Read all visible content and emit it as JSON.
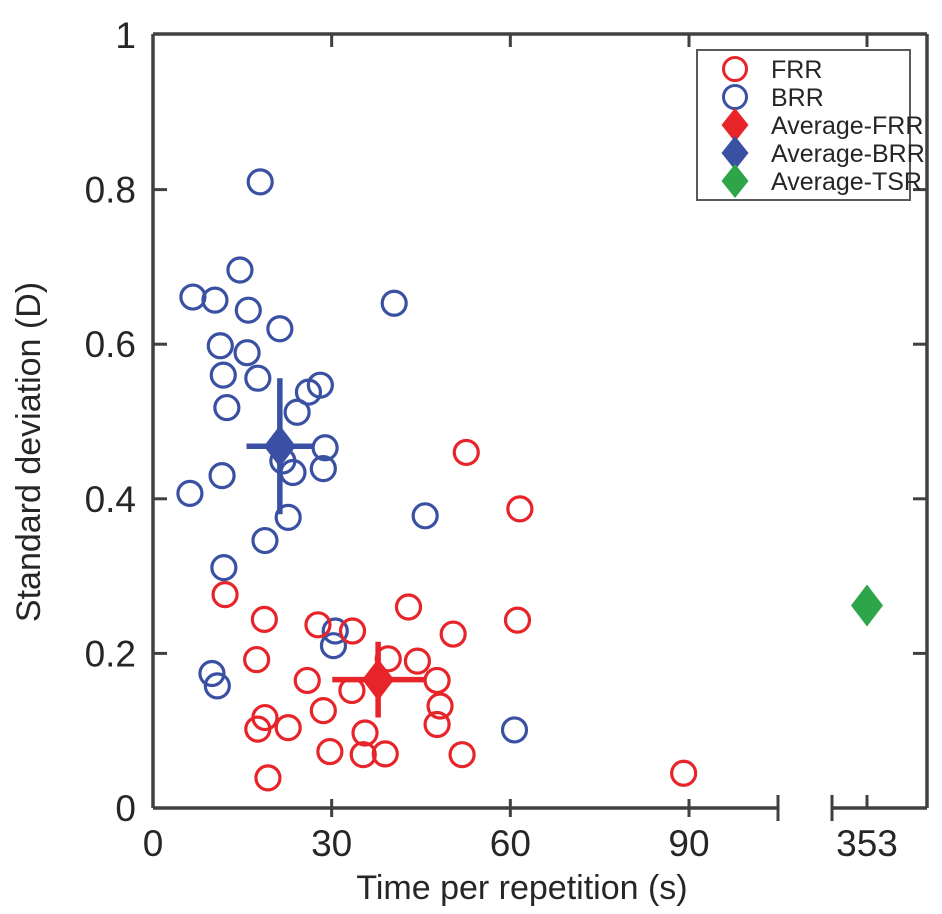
{
  "figure": {
    "background": "#ffffff"
  },
  "chart_data": {
    "type": "scatter",
    "title": "",
    "xlabel": "Time per repetition (s)",
    "ylabel": "Standard deviation (D)",
    "x_axis": {
      "range_main": [
        0,
        105
      ],
      "axis_break": true,
      "break_label": "353",
      "ticks": [
        {
          "value": 0,
          "label": "0"
        },
        {
          "value": 30,
          "label": "30"
        },
        {
          "value": 60,
          "label": "60"
        },
        {
          "value": 90,
          "label": "90"
        },
        {
          "value": 353,
          "label": "353",
          "segment": "break"
        }
      ]
    },
    "y_axis": {
      "range": [
        0,
        1
      ],
      "ticks": [
        {
          "value": 0,
          "label": "0"
        },
        {
          "value": 0.2,
          "label": "0.2"
        },
        {
          "value": 0.4,
          "label": "0.4"
        },
        {
          "value": 0.6,
          "label": "0.6"
        },
        {
          "value": 0.8,
          "label": "0.8"
        },
        {
          "value": 1,
          "label": "1"
        }
      ]
    },
    "grid": false,
    "colors": {
      "frr": "#E8242B",
      "brr": "#3A51A3",
      "tsr": "#2FA54A",
      "axis": "#404041",
      "text": "#262627",
      "legend_border": "#58595B"
    },
    "series": [
      {
        "name": "BRR",
        "marker": "open-circle",
        "color_key": "brr",
        "points": [
          [
            18.0,
            0.81
          ],
          [
            14.6,
            0.696
          ],
          [
            6.7,
            0.661
          ],
          [
            10.4,
            0.657
          ],
          [
            16.0,
            0.644
          ],
          [
            21.3,
            0.62
          ],
          [
            40.5,
            0.653
          ],
          [
            11.3,
            0.598
          ],
          [
            15.8,
            0.589
          ],
          [
            11.8,
            0.56
          ],
          [
            17.6,
            0.556
          ],
          [
            12.4,
            0.518
          ],
          [
            28.1,
            0.547
          ],
          [
            26.1,
            0.538
          ],
          [
            24.2,
            0.512
          ],
          [
            28.9,
            0.466
          ],
          [
            28.6,
            0.439
          ],
          [
            23.5,
            0.434
          ],
          [
            21.8,
            0.449
          ],
          [
            11.6,
            0.43
          ],
          [
            6.2,
            0.407
          ],
          [
            22.7,
            0.376
          ],
          [
            18.8,
            0.346
          ],
          [
            45.7,
            0.378
          ],
          [
            11.9,
            0.311
          ],
          [
            30.6,
            0.229
          ],
          [
            30.3,
            0.21
          ],
          [
            9.9,
            0.174
          ],
          [
            10.8,
            0.158
          ],
          [
            60.7,
            0.101
          ]
        ]
      },
      {
        "name": "FRR",
        "marker": "open-circle",
        "color_key": "frr",
        "points": [
          [
            52.6,
            0.46
          ],
          [
            61.6,
            0.387
          ],
          [
            12.1,
            0.276
          ],
          [
            18.7,
            0.244
          ],
          [
            27.7,
            0.237
          ],
          [
            33.5,
            0.229
          ],
          [
            42.9,
            0.26
          ],
          [
            50.4,
            0.225
          ],
          [
            61.2,
            0.243
          ],
          [
            17.4,
            0.192
          ],
          [
            25.9,
            0.165
          ],
          [
            39.5,
            0.193
          ],
          [
            44.4,
            0.19
          ],
          [
            47.7,
            0.165
          ],
          [
            33.4,
            0.152
          ],
          [
            28.6,
            0.126
          ],
          [
            18.8,
            0.117
          ],
          [
            17.6,
            0.102
          ],
          [
            22.7,
            0.104
          ],
          [
            35.6,
            0.097
          ],
          [
            29.7,
            0.073
          ],
          [
            35.3,
            0.069
          ],
          [
            39.0,
            0.07
          ],
          [
            47.7,
            0.108
          ],
          [
            48.2,
            0.132
          ],
          [
            51.9,
            0.069
          ],
          [
            19.3,
            0.039
          ],
          [
            89.1,
            0.045
          ]
        ]
      },
      {
        "name": "Average-BRR",
        "marker": "diamond",
        "color_key": "brr",
        "points": [
          [
            21.3,
            0.468
          ]
        ],
        "xerr": 5.6,
        "yerr": 0.088
      },
      {
        "name": "Average-FRR",
        "marker": "diamond",
        "color_key": "frr",
        "points": [
          [
            37.8,
            0.166
          ]
        ],
        "xerr": 7.7,
        "yerr": 0.049
      },
      {
        "name": "Average-TSR",
        "marker": "diamond",
        "color_key": "tsr",
        "points": [
          [
            353,
            0.262
          ]
        ],
        "on_break_segment": true
      }
    ],
    "legend": {
      "position": "top-right",
      "entries": [
        {
          "label": "FRR",
          "marker": "open-circle",
          "color_key": "frr"
        },
        {
          "label": "BRR",
          "marker": "open-circle",
          "color_key": "brr"
        },
        {
          "label": "Average-FRR",
          "marker": "diamond",
          "color_key": "frr"
        },
        {
          "label": "Average-BRR",
          "marker": "diamond",
          "color_key": "brr"
        },
        {
          "label": "Average-TSR",
          "marker": "diamond",
          "color_key": "tsr"
        }
      ]
    }
  }
}
